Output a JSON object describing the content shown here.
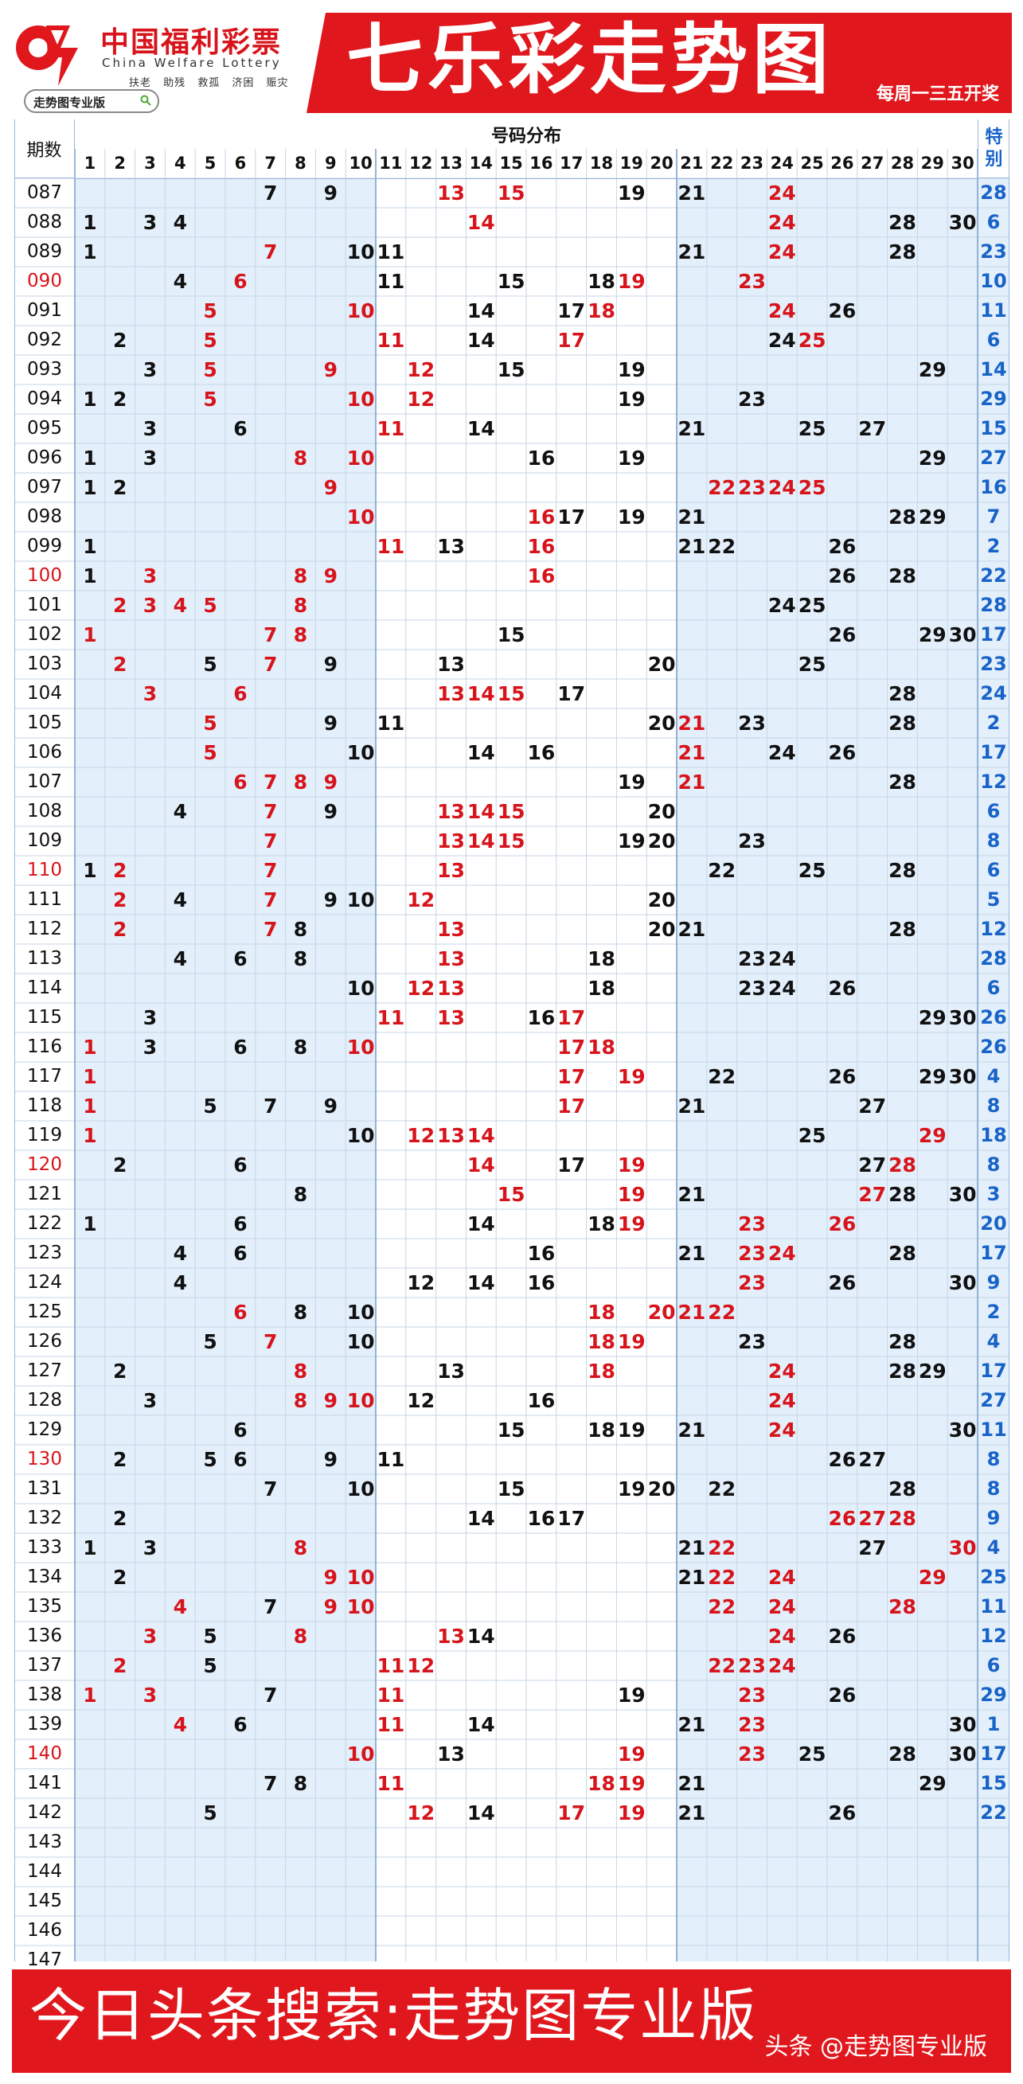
{
  "header": {
    "brand_cn": "中国福利彩票",
    "brand_en": "China Welfare Lottery",
    "slogans": "扶老 助残 救孤 济困 赈灾",
    "pro_badge": "走势图专业版",
    "title": "七乐彩走势图",
    "schedule": "每周一三五开奖"
  },
  "colors": {
    "brand_red": "#e0181d",
    "number_red": "#d7141b",
    "special_blue": "#1863c8",
    "shade_blue": "#e3effa",
    "grid_line": "#c7d6e6"
  },
  "chart_data": {
    "type": "table",
    "title": "七乐彩走势图",
    "period_header": "期数",
    "group_header": "号码分布",
    "special_header": "特别",
    "columns": [
      "1",
      "2",
      "3",
      "4",
      "5",
      "6",
      "7",
      "8",
      "9",
      "10",
      "11",
      "12",
      "13",
      "14",
      "15",
      "16",
      "17",
      "18",
      "19",
      "20",
      "21",
      "22",
      "23",
      "24",
      "25",
      "26",
      "27",
      "28",
      "29",
      "30"
    ],
    "rows": [
      {
        "period": "087",
        "black": [
          7,
          9,
          19,
          21
        ],
        "red": [
          13,
          15,
          24
        ],
        "special": "28"
      },
      {
        "period": "088",
        "black": [
          1,
          3,
          4,
          28,
          30
        ],
        "red": [
          14,
          24
        ],
        "special": "6"
      },
      {
        "period": "089",
        "black": [
          1,
          10,
          11,
          21,
          28
        ],
        "red": [
          7,
          24
        ],
        "special": "23"
      },
      {
        "period": "090",
        "period_red": true,
        "black": [
          4,
          11,
          15,
          18
        ],
        "red": [
          6,
          19,
          23
        ],
        "special": "10"
      },
      {
        "period": "091",
        "black": [
          14,
          17,
          26
        ],
        "red": [
          5,
          10,
          18,
          24
        ],
        "special": "11"
      },
      {
        "period": "092",
        "black": [
          2,
          14,
          24
        ],
        "red": [
          5,
          11,
          17,
          25
        ],
        "special": "6"
      },
      {
        "period": "093",
        "black": [
          3,
          15,
          19,
          29
        ],
        "red": [
          5,
          9,
          12
        ],
        "special": "14"
      },
      {
        "period": "094",
        "black": [
          1,
          2,
          19,
          23
        ],
        "red": [
          5,
          10,
          12
        ],
        "special": "29"
      },
      {
        "period": "095",
        "black": [
          3,
          6,
          14,
          21,
          25,
          27
        ],
        "red": [
          11
        ],
        "special": "15"
      },
      {
        "period": "096",
        "black": [
          1,
          3,
          16,
          19,
          29
        ],
        "red": [
          8,
          10
        ],
        "special": "27"
      },
      {
        "period": "097",
        "black": [
          1,
          2
        ],
        "red": [
          9,
          22,
          23,
          24,
          25
        ],
        "special": "16"
      },
      {
        "period": "098",
        "black": [
          17,
          19,
          21,
          28,
          29
        ],
        "red": [
          10,
          16
        ],
        "special": "7"
      },
      {
        "period": "099",
        "black": [
          1,
          13,
          21,
          22,
          26
        ],
        "red": [
          11,
          16
        ],
        "special": "2"
      },
      {
        "period": "100",
        "period_red": true,
        "black": [
          1,
          26,
          28
        ],
        "red": [
          3,
          8,
          9,
          16
        ],
        "special": "22"
      },
      {
        "period": "101",
        "black": [
          24,
          25
        ],
        "red": [
          2,
          3,
          4,
          5,
          8
        ],
        "special": "28"
      },
      {
        "period": "102",
        "black": [
          15,
          26,
          29,
          30
        ],
        "red": [
          1,
          7,
          8
        ],
        "special": "17"
      },
      {
        "period": "103",
        "black": [
          5,
          9,
          13,
          20,
          25
        ],
        "red": [
          2,
          7
        ],
        "special": "23"
      },
      {
        "period": "104",
        "black": [
          17,
          28
        ],
        "red": [
          3,
          6,
          13,
          14,
          15
        ],
        "special": "24"
      },
      {
        "period": "105",
        "black": [
          9,
          11,
          20,
          23,
          28
        ],
        "red": [
          5,
          21
        ],
        "special": "2"
      },
      {
        "period": "106",
        "black": [
          10,
          14,
          16,
          24,
          26
        ],
        "red": [
          5,
          21
        ],
        "special": "17"
      },
      {
        "period": "107",
        "black": [
          19,
          28
        ],
        "red": [
          6,
          7,
          8,
          9,
          21
        ],
        "special": "12"
      },
      {
        "period": "108",
        "black": [
          4,
          9,
          20
        ],
        "red": [
          7,
          13,
          14,
          15
        ],
        "special": "6"
      },
      {
        "period": "109",
        "black": [
          19,
          20,
          23
        ],
        "red": [
          7,
          13,
          14,
          15
        ],
        "special": "8"
      },
      {
        "period": "110",
        "period_red": true,
        "black": [
          1,
          22,
          25,
          28
        ],
        "red": [
          2,
          7,
          13
        ],
        "special": "6"
      },
      {
        "period": "111",
        "black": [
          4,
          9,
          10,
          20
        ],
        "red": [
          2,
          7,
          12
        ],
        "special": "5"
      },
      {
        "period": "112",
        "black": [
          8,
          20,
          21,
          28
        ],
        "red": [
          2,
          7,
          13
        ],
        "special": "12"
      },
      {
        "period": "113",
        "black": [
          4,
          6,
          8,
          18,
          23,
          24
        ],
        "red": [
          13
        ],
        "special": "28"
      },
      {
        "period": "114",
        "black": [
          10,
          18,
          23,
          24,
          26
        ],
        "red": [
          12,
          13
        ],
        "special": "6"
      },
      {
        "period": "115",
        "black": [
          3,
          16,
          29,
          30
        ],
        "red": [
          11,
          13,
          17
        ],
        "special": "26"
      },
      {
        "period": "116",
        "black": [
          3,
          6,
          8
        ],
        "red": [
          1,
          10,
          17,
          18
        ],
        "special": "26"
      },
      {
        "period": "117",
        "black": [
          22,
          26,
          29,
          30
        ],
        "red": [
          1,
          17,
          19
        ],
        "special": "4"
      },
      {
        "period": "118",
        "black": [
          5,
          7,
          9,
          21,
          27
        ],
        "red": [
          1,
          17
        ],
        "special": "8"
      },
      {
        "period": "119",
        "black": [
          10,
          25
        ],
        "red": [
          1,
          12,
          13,
          14,
          29
        ],
        "special": "18"
      },
      {
        "period": "120",
        "period_red": true,
        "black": [
          2,
          6,
          17,
          27
        ],
        "red": [
          14,
          19,
          28
        ],
        "special": "8"
      },
      {
        "period": "121",
        "black": [
          8,
          21,
          28,
          30
        ],
        "red": [
          15,
          19,
          27
        ],
        "special": "3"
      },
      {
        "period": "122",
        "black": [
          1,
          6,
          14,
          18
        ],
        "red": [
          19,
          23,
          26
        ],
        "special": "20"
      },
      {
        "period": "123",
        "black": [
          4,
          6,
          16,
          21,
          28
        ],
        "red": [
          23,
          24
        ],
        "special": "17"
      },
      {
        "period": "124",
        "black": [
          4,
          12,
          14,
          16,
          26,
          30
        ],
        "red": [
          23
        ],
        "special": "9"
      },
      {
        "period": "125",
        "black": [
          8,
          10
        ],
        "red": [
          6,
          18,
          20,
          21,
          22
        ],
        "special": "2"
      },
      {
        "period": "126",
        "black": [
          5,
          10,
          23,
          28
        ],
        "red": [
          7,
          18,
          19
        ],
        "special": "4"
      },
      {
        "period": "127",
        "black": [
          2,
          13,
          28,
          29
        ],
        "red": [
          8,
          18,
          24
        ],
        "special": "17"
      },
      {
        "period": "128",
        "black": [
          3,
          12,
          16
        ],
        "red": [
          8,
          9,
          10,
          24
        ],
        "special": "27"
      },
      {
        "period": "129",
        "black": [
          6,
          15,
          18,
          19,
          21,
          30
        ],
        "red": [
          24
        ],
        "special": "11"
      },
      {
        "period": "130",
        "period_red": true,
        "black": [
          2,
          5,
          6,
          9,
          11,
          26,
          27
        ],
        "red": [],
        "special": "8"
      },
      {
        "period": "131",
        "black": [
          7,
          10,
          15,
          19,
          20,
          22,
          28
        ],
        "red": [],
        "special": "8"
      },
      {
        "period": "132",
        "black": [
          2,
          14,
          16,
          17
        ],
        "red": [
          26,
          27,
          28
        ],
        "special": "9"
      },
      {
        "period": "133",
        "black": [
          1,
          3,
          21,
          27
        ],
        "red": [
          8,
          22,
          30
        ],
        "special": "4"
      },
      {
        "period": "134",
        "black": [
          2,
          21
        ],
        "red": [
          9,
          10,
          22,
          24,
          29
        ],
        "special": "25"
      },
      {
        "period": "135",
        "black": [
          7
        ],
        "red": [
          4,
          9,
          10,
          22,
          24,
          28
        ],
        "special": "11"
      },
      {
        "period": "136",
        "black": [
          5,
          14,
          26
        ],
        "red": [
          3,
          8,
          13,
          24
        ],
        "special": "12"
      },
      {
        "period": "137",
        "black": [
          5
        ],
        "red": [
          2,
          11,
          12,
          22,
          23,
          24
        ],
        "special": "6"
      },
      {
        "period": "138",
        "black": [
          7,
          19,
          26
        ],
        "red": [
          1,
          3,
          11,
          23
        ],
        "special": "29"
      },
      {
        "period": "139",
        "black": [
          6,
          14,
          21,
          30
        ],
        "red": [
          4,
          11,
          23
        ],
        "special": "1"
      },
      {
        "period": "140",
        "period_red": true,
        "black": [
          13,
          25,
          28,
          30
        ],
        "red": [
          10,
          19,
          23
        ],
        "special": "17"
      },
      {
        "period": "141",
        "black": [
          7,
          8,
          21,
          29
        ],
        "red": [
          11,
          18,
          19
        ],
        "special": "15"
      },
      {
        "period": "142",
        "black": [
          5,
          14,
          21,
          26
        ],
        "red": [
          12,
          17,
          19
        ],
        "special": "22"
      },
      {
        "period": "143",
        "black": [],
        "red": [],
        "special": ""
      },
      {
        "period": "144",
        "black": [],
        "red": [],
        "special": ""
      },
      {
        "period": "145",
        "black": [],
        "red": [],
        "special": ""
      },
      {
        "period": "146",
        "black": [],
        "red": [],
        "special": ""
      },
      {
        "period": "147",
        "black": [],
        "red": [],
        "special": ""
      }
    ]
  },
  "footer": {
    "search_text": "今日头条搜索:走势图专业版",
    "watermark": "头条 @走势图专业版"
  }
}
